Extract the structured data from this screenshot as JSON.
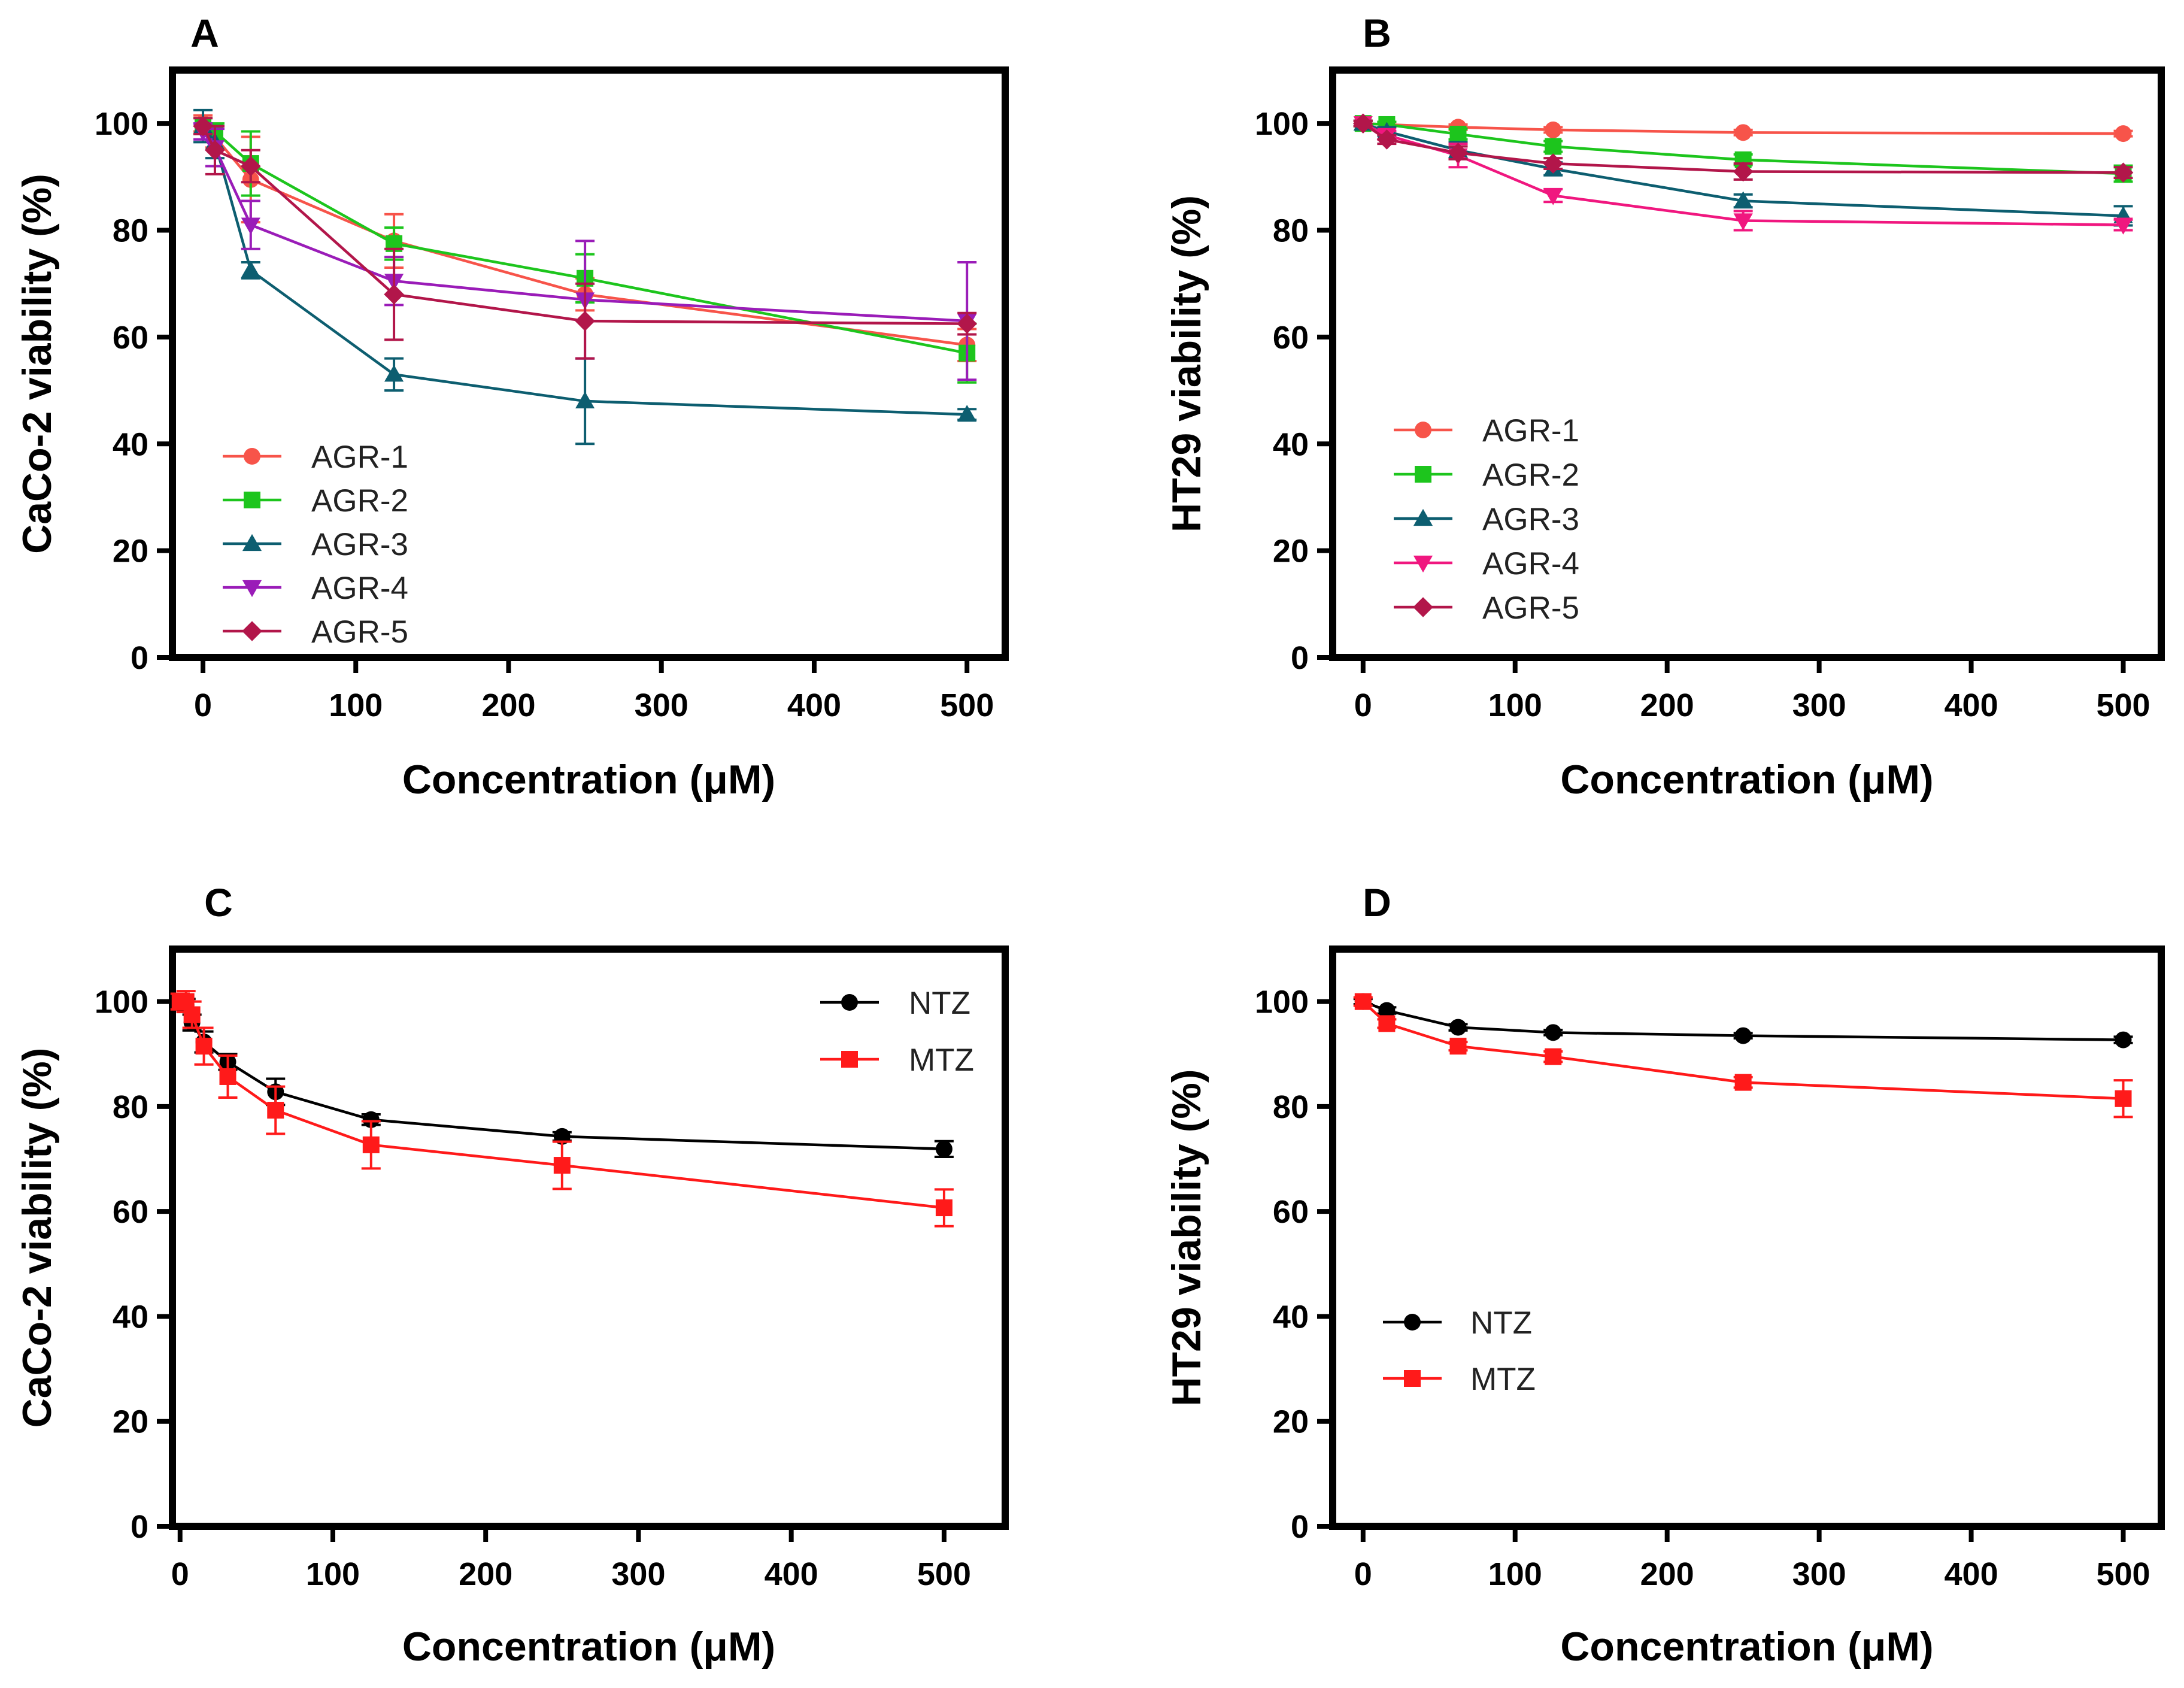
{
  "chart_data": [
    {
      "panel": "A",
      "type": "line",
      "xlabel": "Concentration (μM)",
      "ylabel": "CaCo-2 viability (%)",
      "xlim": [
        -20,
        525
      ],
      "ylim": [
        0,
        110
      ],
      "xticks": [
        0,
        100,
        200,
        300,
        400,
        500
      ],
      "yticks": [
        0,
        20,
        40,
        60,
        80,
        100
      ],
      "legend_position": "lower-left",
      "series": [
        {
          "name": "AGR-1",
          "color": "#f7544a",
          "marker": "circle",
          "x": [
            0,
            7.8,
            31.25,
            125,
            250,
            500
          ],
          "y": [
            100,
            97.5,
            89.5,
            78,
            68,
            58.5
          ],
          "err": [
            1.5,
            2,
            8,
            5,
            3,
            3
          ]
        },
        {
          "name": "AGR-2",
          "color": "#1dc51d",
          "marker": "square",
          "x": [
            0,
            7.8,
            31.25,
            125,
            250,
            500
          ],
          "y": [
            99.5,
            98.5,
            92.5,
            77.5,
            71,
            57
          ],
          "err": [
            1.5,
            1.5,
            6,
            3,
            4.5,
            5.5
          ]
        },
        {
          "name": "AGR-3",
          "color": "#0d5e70",
          "marker": "triangle-up",
          "x": [
            0,
            7.8,
            31.25,
            125,
            250,
            500
          ],
          "y": [
            99.5,
            96.5,
            72.5,
            53,
            48,
            45.5
          ],
          "err": [
            3,
            3,
            1.5,
            3,
            8,
            1
          ]
        },
        {
          "name": "AGR-4",
          "color": "#9a1cb8",
          "marker": "triangle-down",
          "x": [
            0,
            7.8,
            31.25,
            125,
            250,
            500
          ],
          "y": [
            98.5,
            95.5,
            81,
            70.5,
            67,
            63
          ],
          "err": [
            1.5,
            3.5,
            4.5,
            4.5,
            11,
            11
          ]
        },
        {
          "name": "AGR-5",
          "color": "#b2164a",
          "marker": "diamond",
          "x": [
            0,
            7.8,
            31.25,
            125,
            250,
            500
          ],
          "y": [
            99.5,
            95,
            92,
            68,
            63,
            62.5
          ],
          "err": [
            1.5,
            4.5,
            3,
            8.5,
            7,
            2
          ]
        }
      ]
    },
    {
      "panel": "B",
      "type": "line",
      "xlabel": "Concentration (μM)",
      "ylabel": "HT29 viability (%)",
      "xlim": [
        -20,
        525
      ],
      "ylim": [
        0,
        110
      ],
      "xticks": [
        0,
        100,
        200,
        300,
        400,
        500
      ],
      "yticks": [
        0,
        20,
        40,
        60,
        80,
        100
      ],
      "legend_position": "lower-left",
      "series": [
        {
          "name": "AGR-1",
          "color": "#f7544a",
          "marker": "circle",
          "x": [
            0,
            15.6,
            62.5,
            125,
            250,
            500
          ],
          "y": [
            100,
            99.8,
            99.3,
            98.8,
            98.3,
            98.1
          ],
          "err": [
            0.5,
            0.5,
            0.5,
            0.5,
            0.5,
            0.5
          ]
        },
        {
          "name": "AGR-2",
          "color": "#1dc51d",
          "marker": "square",
          "x": [
            0,
            15.6,
            62.5,
            125,
            250,
            500
          ],
          "y": [
            100,
            99.8,
            98,
            95.7,
            93.2,
            90.6
          ],
          "err": [
            0.5,
            0.5,
            1,
            1,
            1,
            1.5
          ]
        },
        {
          "name": "AGR-3",
          "color": "#0d5e70",
          "marker": "triangle-up",
          "x": [
            0,
            15.6,
            62.5,
            125,
            250,
            500
          ],
          "y": [
            100,
            98.5,
            95,
            91.5,
            85.5,
            82.7
          ],
          "err": [
            0.5,
            0.8,
            1.5,
            1.2,
            1.2,
            1.8
          ]
        },
        {
          "name": "AGR-4",
          "color": "#f0177f",
          "marker": "triangle-down",
          "x": [
            0,
            15.6,
            62.5,
            125,
            250,
            500
          ],
          "y": [
            100,
            97.8,
            94,
            86.5,
            81.8,
            81
          ],
          "err": [
            0.5,
            0.8,
            2.2,
            1.2,
            1.8,
            1
          ]
        },
        {
          "name": "AGR-5",
          "color": "#b2164a",
          "marker": "diamond",
          "x": [
            0,
            15.6,
            62.5,
            125,
            250,
            500
          ],
          "y": [
            100,
            97,
            94.5,
            92.5,
            91,
            90.8
          ],
          "err": [
            0.5,
            0.8,
            1.2,
            1,
            1.5,
            1
          ]
        }
      ]
    },
    {
      "panel": "C",
      "type": "line",
      "xlabel": "Concentration (μM)",
      "ylabel": "CaCo-2 viability (%)",
      "xlim": [
        -5,
        540
      ],
      "ylim": [
        0,
        110
      ],
      "xticks": [
        0,
        100,
        200,
        300,
        400,
        500
      ],
      "yticks": [
        0,
        20,
        40,
        60,
        80,
        100
      ],
      "legend_position": "top-right",
      "series": [
        {
          "name": "NTZ",
          "color": "#000000",
          "marker": "circle",
          "x": [
            0,
            3.9,
            7.8,
            15.6,
            31.25,
            62.5,
            125,
            250,
            500
          ],
          "y": [
            100,
            99.3,
            96,
            92.3,
            88.5,
            82.8,
            77.5,
            74.3,
            71.9
          ],
          "err": [
            1.5,
            1.2,
            1.5,
            2,
            1.5,
            2.5,
            1,
            0.8,
            1.5
          ]
        },
        {
          "name": "MTZ",
          "color": "#ff1a1a",
          "marker": "square",
          "x": [
            0,
            3.9,
            7.8,
            15.6,
            31.25,
            62.5,
            125,
            250,
            500
          ],
          "y": [
            100,
            100,
            97.5,
            91.5,
            85.7,
            79.3,
            72.7,
            68.8,
            60.7
          ],
          "err": [
            1.5,
            2,
            2.5,
            3.5,
            4,
            4.5,
            4.5,
            4.5,
            3.5
          ]
        }
      ]
    },
    {
      "panel": "D",
      "type": "line",
      "xlabel": "Concentration (μM)",
      "ylabel": "HT29 viability (%)",
      "xlim": [
        -20,
        525
      ],
      "ylim": [
        0,
        110
      ],
      "xticks": [
        0,
        100,
        200,
        300,
        400,
        500
      ],
      "yticks": [
        0,
        20,
        40,
        60,
        80,
        100
      ],
      "legend_position": "lower-left",
      "series": [
        {
          "name": "NTZ",
          "color": "#000000",
          "marker": "circle",
          "x": [
            0,
            15.6,
            62.5,
            125,
            250,
            500
          ],
          "y": [
            100,
            98.3,
            95.1,
            94.1,
            93.5,
            92.7
          ],
          "err": [
            0.5,
            0.6,
            0.6,
            0.5,
            0.5,
            0.6
          ]
        },
        {
          "name": "MTZ",
          "color": "#ff1a1a",
          "marker": "square",
          "x": [
            0,
            15.6,
            62.5,
            125,
            250,
            500
          ],
          "y": [
            100,
            95.8,
            91.5,
            89.5,
            84.6,
            81.5
          ],
          "err": [
            0.8,
            0.8,
            0.8,
            1,
            1,
            3.5
          ]
        }
      ]
    }
  ]
}
